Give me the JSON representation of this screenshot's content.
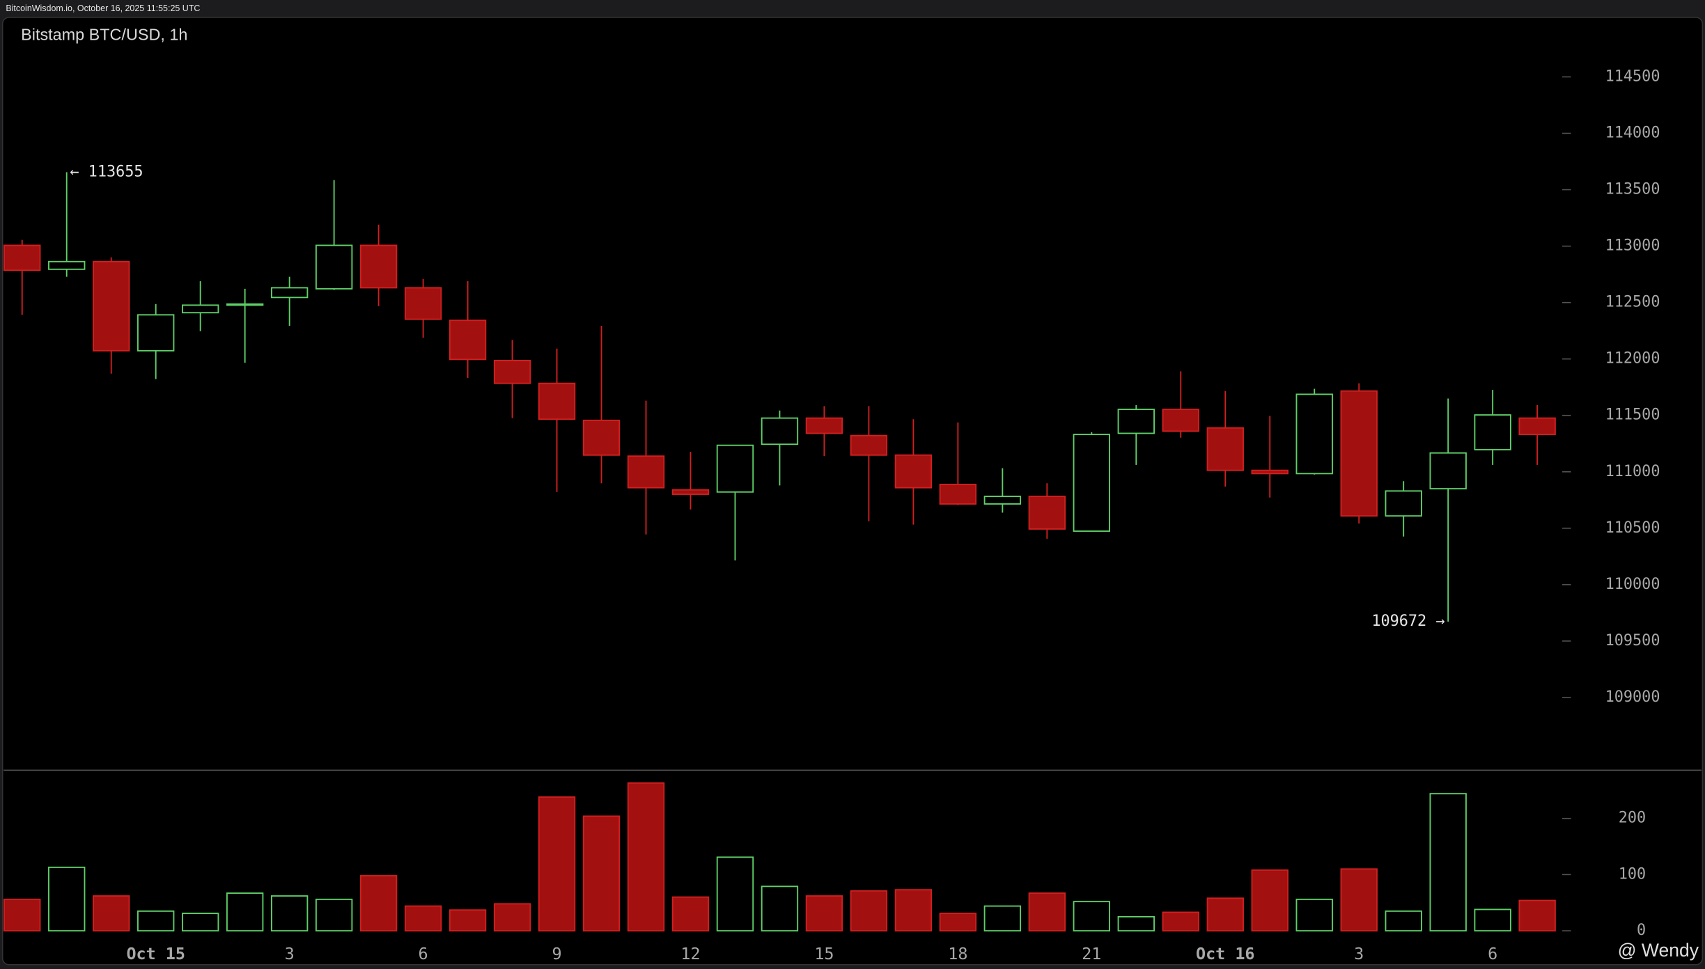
{
  "header": "BitcoinWisdom.io, October 16, 2025 11:55:25 UTC",
  "watermark": "@ Wendy",
  "chart_data": {
    "type": "candlestick",
    "title": "Bitstamp BTC/USD, 1h",
    "categories": [
      null,
      null,
      null,
      "Oct 15",
      null,
      null,
      "3",
      null,
      null,
      "6",
      null,
      null,
      "9",
      null,
      null,
      "12",
      null,
      null,
      "15",
      null,
      null,
      "18",
      null,
      null,
      "21",
      null,
      null,
      "Oct 16",
      null,
      null,
      "3",
      null,
      null,
      "6",
      null
    ],
    "open": [
      113007,
      112795,
      112863,
      112073,
      112410,
      112477,
      112545,
      112622,
      113007,
      112631,
      112342,
      111986,
      111784,
      111456,
      111139,
      110840,
      110821,
      111244,
      111476,
      111321,
      111148,
      110888,
      110715,
      110782,
      110474,
      111341,
      111553,
      111389,
      111013,
      110984,
      111716,
      110609,
      110850,
      111196,
      111476
    ],
    "high": [
      113055,
      113655,
      112901,
      112487,
      112689,
      112622,
      112728,
      113585,
      113190,
      112709,
      112689,
      112169,
      112092,
      112294,
      111630,
      111177,
      111235,
      111543,
      111582,
      111582,
      111466,
      111437,
      111032,
      110898,
      111350,
      111591,
      111890,
      111716,
      111495,
      111736,
      111784,
      110917,
      111649,
      111726,
      111591
    ],
    "low": [
      112391,
      112728,
      111870,
      111822,
      112246,
      111967,
      112294,
      112612,
      112468,
      112188,
      111832,
      111476,
      110821,
      110898,
      110445,
      110666,
      110214,
      110879,
      111139,
      110561,
      110532,
      110705,
      110638,
      110407,
      110474,
      111061,
      111302,
      110869,
      110772,
      110975,
      110541,
      110426,
      109672,
      111061,
      111061
    ],
    "close": [
      112786,
      112863,
      112073,
      112391,
      112477,
      112487,
      112631,
      113007,
      112631,
      112352,
      111996,
      111784,
      111466,
      111148,
      110859,
      110801,
      111235,
      111476,
      111341,
      111148,
      110859,
      110715,
      110782,
      110493,
      111331,
      111553,
      111360,
      111013,
      110984,
      111687,
      110609,
      110830,
      111167,
      111504,
      111331
    ],
    "volume": [
      56,
      113,
      62,
      35,
      31,
      67,
      62,
      56,
      98,
      44,
      37,
      48,
      238,
      204,
      263,
      60,
      131,
      79,
      62,
      71,
      73,
      31,
      44,
      67,
      52,
      25,
      33,
      58,
      108,
      56,
      110,
      35,
      244,
      38,
      54
    ],
    "up_color": "#5fd068",
    "down_color": "#a31010",
    "down_edge": "#d02020",
    "ylim": [
      108365,
      114700
    ],
    "yticks": [
      109000,
      109500,
      110000,
      110500,
      111000,
      111500,
      112000,
      112500,
      113000,
      113500,
      114000,
      114500
    ],
    "volume_ylim": [
      -10,
      280
    ],
    "volume_ticks": [
      0,
      100,
      200
    ],
    "max_label": "← 113655",
    "min_label": "109672 →"
  }
}
